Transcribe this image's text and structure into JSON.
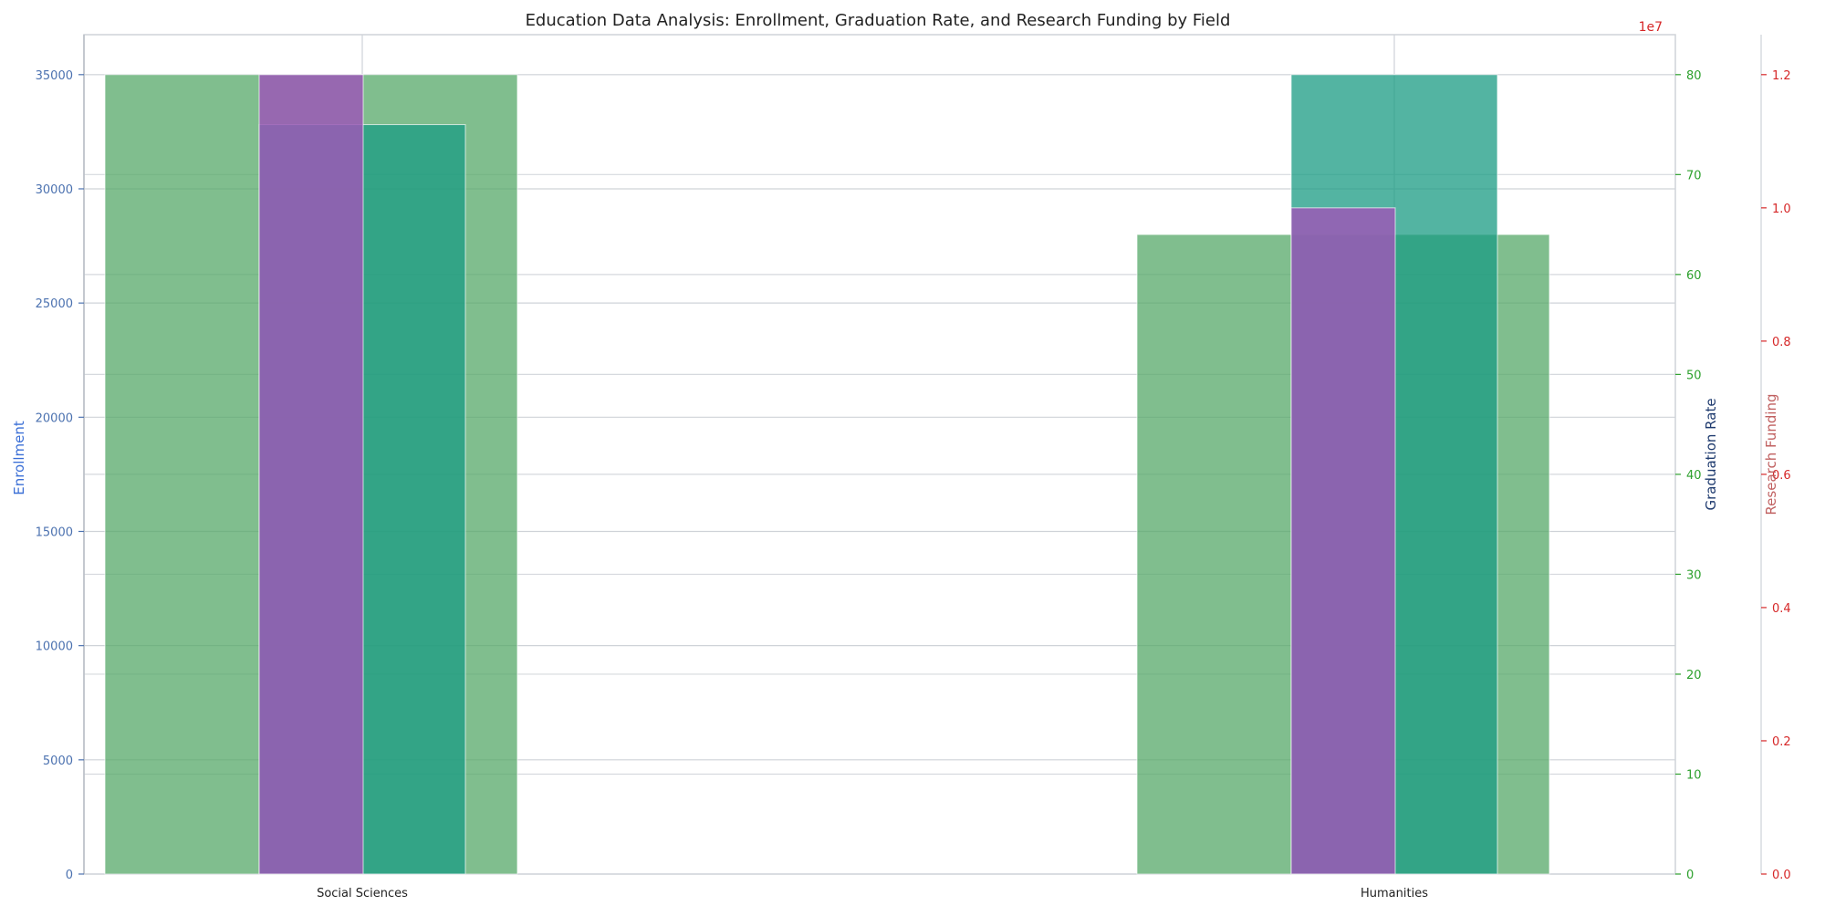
{
  "chart_data": {
    "type": "bar",
    "title": "Education Data Analysis: Enrollment, Graduation Rate, and Research Funding by Field",
    "categories": [
      "Social Sciences",
      "Humanities"
    ],
    "axes": {
      "enrollment": {
        "label": "Enrollment",
        "ylim": [
          0,
          36750
        ],
        "ticks": [
          0,
          5000,
          10000,
          15000,
          20000,
          25000,
          30000,
          35000
        ],
        "color": "#4c72b0"
      },
      "graduation_rate": {
        "label": "Graduation Rate",
        "ylim": [
          0,
          84
        ],
        "ticks": [
          0,
          10,
          20,
          30,
          40,
          50,
          60,
          70,
          80
        ],
        "color": "#2ca02c"
      },
      "research_funding": {
        "label": "Research Funding",
        "ylim": [
          0,
          1.26
        ],
        "ticks": [
          "0.0",
          "0.2",
          "0.4",
          "0.6",
          "0.8",
          "1.0",
          "1.2"
        ],
        "offset_label": "1e7",
        "color": "#d62728"
      }
    },
    "series": [
      {
        "name": "",
        "axis": "enrollment",
        "values": [
          35000,
          28000
        ],
        "color": "#55a868"
      },
      {
        "name": "",
        "axis": "graduation_rate",
        "values": [
          75,
          80
        ],
        "color": "#1a9b83"
      },
      {
        "name": "",
        "axis": "research_funding",
        "values": [
          1.2,
          1.0
        ],
        "color": "#9b59b6"
      }
    ],
    "grid": true,
    "legend": "none"
  }
}
